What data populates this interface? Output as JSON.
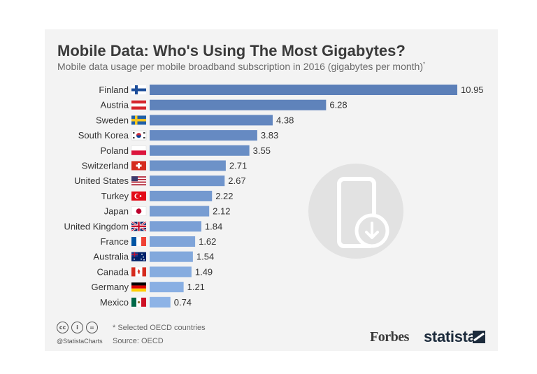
{
  "header": {
    "title": "Mobile Data: Who's Using The Most Gigabytes?",
    "subtitle": "Mobile data usage per mobile broadband subscription in 2016 (gigabytes per month)",
    "subtitle_marker": "*"
  },
  "chart_data": {
    "type": "bar",
    "orientation": "horizontal",
    "categories": [
      "Finland",
      "Austria",
      "Sweden",
      "South Korea",
      "Poland",
      "Switzerland",
      "United States",
      "Turkey",
      "Japan",
      "United Kingdom",
      "France",
      "Australia",
      "Canada",
      "Germany",
      "Mexico"
    ],
    "values": [
      10.95,
      6.28,
      4.38,
      3.83,
      3.55,
      2.71,
      2.67,
      2.22,
      2.12,
      1.84,
      1.62,
      1.54,
      1.49,
      1.21,
      0.74
    ],
    "value_labels": [
      "10.95",
      "6.28",
      "4.38",
      "3.83",
      "3.55",
      "2.71",
      "2.67",
      "2.22",
      "2.12",
      "1.84",
      "1.62",
      "1.54",
      "1.49",
      "1.21",
      "0.74"
    ],
    "flags": [
      "finland-flag-icon",
      "austria-flag-icon",
      "sweden-flag-icon",
      "south-korea-flag-icon",
      "poland-flag-icon",
      "switzerland-flag-icon",
      "united-states-flag-icon",
      "turkey-flag-icon",
      "japan-flag-icon",
      "united-kingdom-flag-icon",
      "france-flag-icon",
      "australia-flag-icon",
      "canada-flag-icon",
      "germany-flag-icon",
      "mexico-flag-icon"
    ],
    "xlim": [
      0,
      10.95
    ],
    "bar_color_top": "#5b7fb8",
    "bar_color_bottom": "#8db3e6",
    "grid": false,
    "legend": "none"
  },
  "footer": {
    "note": "* Selected OECD countries",
    "source": "Source: OECD",
    "handle": "@StatistaCharts",
    "cc_icons": [
      "cc-icon",
      "by-icon",
      "nd-icon"
    ],
    "forbes_logo": "Forbes",
    "statista_logo": "statista"
  }
}
